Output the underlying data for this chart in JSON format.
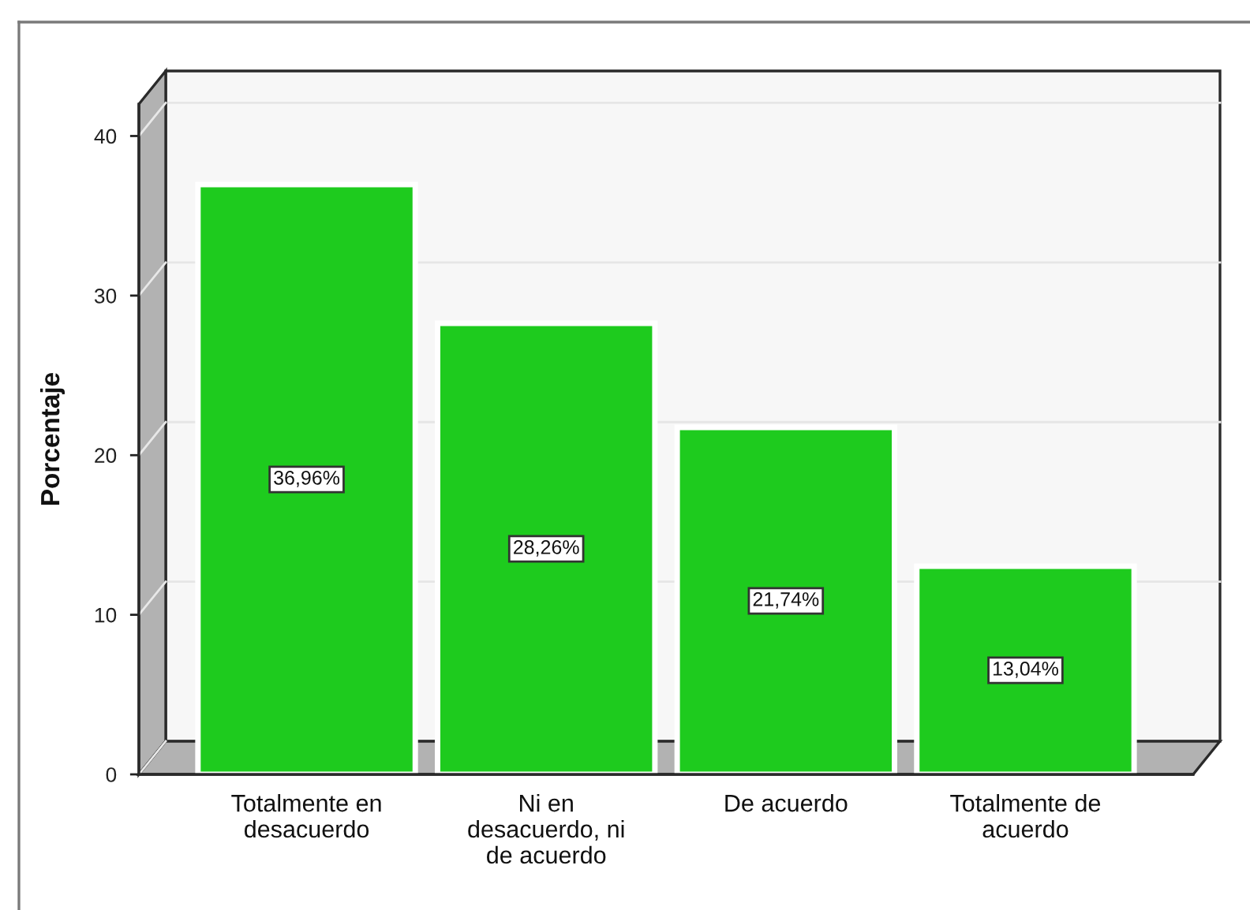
{
  "chart_data": {
    "type": "bar",
    "ylabel": "Porcentaje",
    "categories": [
      "Totalmente en\ndesacuerdo",
      "Ni en\ndesacuerdo, ni\nde acuerdo",
      "De acuerdo",
      "Totalmente de\nacuerdo"
    ],
    "values": [
      36.96,
      28.26,
      21.74,
      13.04
    ],
    "value_labels": [
      "36,96%",
      "28,26%",
      "21,74%",
      "13,04%"
    ],
    "color": "#1ecb1e",
    "ylim": [
      0,
      42
    ],
    "yticks": [
      0,
      10,
      20,
      30,
      40
    ],
    "grid": "y"
  }
}
